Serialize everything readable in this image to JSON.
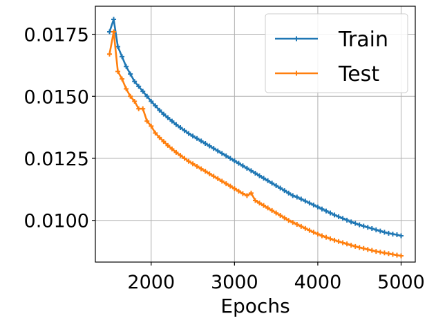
{
  "chart_data": {
    "type": "line",
    "title": "",
    "xlabel": "Epochs",
    "ylabel": "",
    "xlim": [
      1330,
      5170
    ],
    "ylim": [
      0.00832,
      0.01863
    ],
    "xticks": [
      2000,
      3000,
      4000,
      5000
    ],
    "xtick_labels": [
      "2000",
      "3000",
      "4000",
      "5000"
    ],
    "yticks": [
      0.01,
      0.0125,
      0.015,
      0.0175
    ],
    "ytick_labels": [
      "0.0100",
      "0.0125",
      "0.0150",
      "0.0175"
    ],
    "grid": true,
    "legend_position": "top-right",
    "series": [
      {
        "name": "Train",
        "color": "#1f77b4",
        "marker": "plus",
        "x": [
          1500,
          1550,
          1600,
          1650,
          1700,
          1750,
          1800,
          1850,
          1900,
          1950,
          2000,
          2050,
          2100,
          2150,
          2200,
          2250,
          2300,
          2350,
          2400,
          2450,
          2500,
          2550,
          2600,
          2650,
          2700,
          2750,
          2800,
          2850,
          2900,
          2950,
          3000,
          3050,
          3100,
          3150,
          3200,
          3250,
          3300,
          3350,
          3400,
          3450,
          3500,
          3550,
          3600,
          3650,
          3700,
          3750,
          3800,
          3850,
          3900,
          3950,
          4000,
          4050,
          4100,
          4150,
          4200,
          4250,
          4300,
          4350,
          4400,
          4450,
          4500,
          4550,
          4600,
          4650,
          4700,
          4750,
          4800,
          4850,
          4900,
          4950,
          5000
        ],
        "y": [
          0.0176,
          0.0181,
          0.017,
          0.0166,
          0.0162,
          0.0159,
          0.0156,
          0.0154,
          0.0152,
          0.015,
          0.0148,
          0.01462,
          0.01444,
          0.01428,
          0.01414,
          0.014,
          0.01386,
          0.01374,
          0.01362,
          0.0135,
          0.0134,
          0.0133,
          0.0132,
          0.0131,
          0.013,
          0.0129,
          0.0128,
          0.0127,
          0.0126,
          0.0125,
          0.0124,
          0.0123,
          0.0122,
          0.0121,
          0.012,
          0.0119,
          0.0118,
          0.0117,
          0.0116,
          0.0115,
          0.0114,
          0.0113,
          0.0112,
          0.0111,
          0.011,
          0.01094,
          0.01086,
          0.01078,
          0.0107,
          0.01062,
          0.01054,
          0.01046,
          0.01038,
          0.0103,
          0.01022,
          0.01015,
          0.01008,
          0.01001,
          0.00994,
          0.00988,
          0.00982,
          0.00977,
          0.00972,
          0.00967,
          0.00962,
          0.00957,
          0.00952,
          0.00948,
          0.00945,
          0.00942,
          0.00938
        ]
      },
      {
        "name": "Test",
        "color": "#ff7f0e",
        "marker": "plus",
        "x": [
          1500,
          1550,
          1600,
          1650,
          1700,
          1750,
          1800,
          1850,
          1900,
          1950,
          2000,
          2050,
          2100,
          2150,
          2200,
          2250,
          2300,
          2350,
          2400,
          2450,
          2500,
          2550,
          2600,
          2650,
          2700,
          2750,
          2800,
          2850,
          2900,
          2950,
          3000,
          3050,
          3100,
          3150,
          3200,
          3250,
          3300,
          3350,
          3400,
          3450,
          3500,
          3550,
          3600,
          3650,
          3700,
          3750,
          3800,
          3850,
          3900,
          3950,
          4000,
          4050,
          4100,
          4150,
          4200,
          4250,
          4300,
          4350,
          4400,
          4450,
          4500,
          4550,
          4600,
          4650,
          4700,
          4750,
          4800,
          4850,
          4900,
          4950,
          5000
        ],
        "y": [
          0.0167,
          0.0176,
          0.016,
          0.0157,
          0.0153,
          0.015,
          0.0148,
          0.0145,
          0.0145,
          0.014,
          0.0138,
          0.01352,
          0.01334,
          0.01318,
          0.01302,
          0.01288,
          0.01274,
          0.01262,
          0.0125,
          0.01238,
          0.01228,
          0.01218,
          0.01208,
          0.01198,
          0.01188,
          0.01178,
          0.01168,
          0.01158,
          0.01148,
          0.01138,
          0.01128,
          0.01118,
          0.01108,
          0.011,
          0.0111,
          0.0108,
          0.0107,
          0.0106,
          0.0105,
          0.0104,
          0.0103,
          0.0102,
          0.0101,
          0.01,
          0.00992,
          0.00984,
          0.00976,
          0.00968,
          0.0096,
          0.00952,
          0.00945,
          0.00938,
          0.00932,
          0.00926,
          0.0092,
          0.00915,
          0.0091,
          0.00905,
          0.009,
          0.00895,
          0.00891,
          0.00887,
          0.00883,
          0.00879,
          0.00875,
          0.00872,
          0.00869,
          0.00866,
          0.00863,
          0.0086,
          0.00857
        ]
      }
    ]
  }
}
